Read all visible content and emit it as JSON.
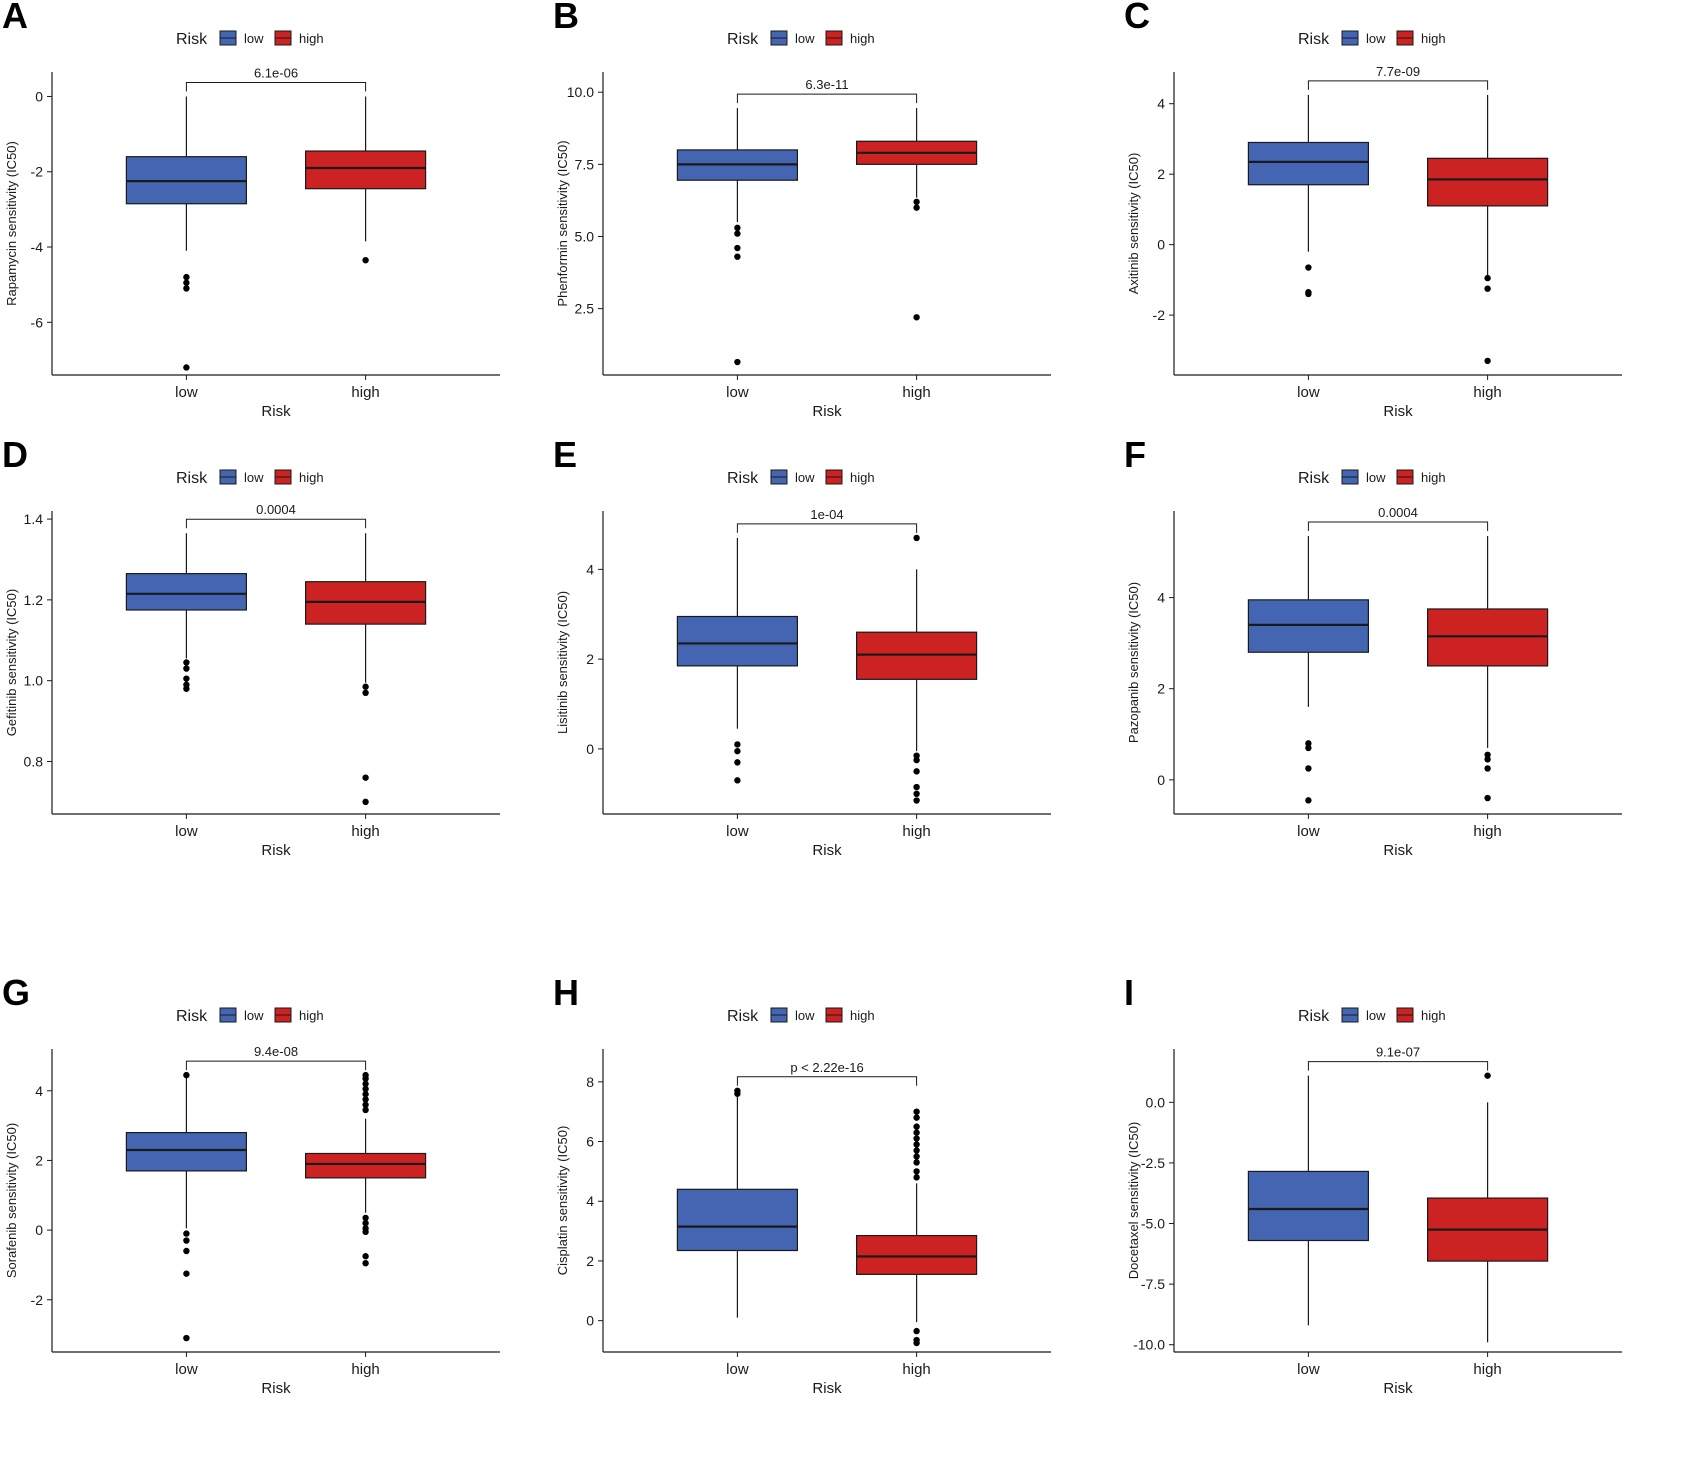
{
  "legend": {
    "title": "Risk",
    "low_label": "low",
    "high_label": "high"
  },
  "colors": {
    "low": "#4466b2",
    "high": "#cc2222",
    "stroke": "#1a1a1a"
  },
  "chart_data": [
    {
      "type": "box",
      "panel": "A",
      "title": "",
      "xlabel": "Risk",
      "ylabel": "Rapamycin sensitivity (IC50)",
      "categories": [
        "low",
        "high"
      ],
      "ylim": [
        -7.4,
        0.65
      ],
      "yticks": [
        0,
        -2,
        -4,
        -6
      ],
      "ytick_labels": [
        "0",
        "-2",
        "-4",
        "-6"
      ],
      "p_value": "6.1e-06",
      "boxes": [
        {
          "name": "low",
          "q1": -2.85,
          "median": -2.25,
          "q3": -1.6,
          "whisker_low": -4.1,
          "whisker_high": 0.0,
          "outliers": [
            -4.8,
            -4.95,
            -5.1,
            -7.2
          ]
        },
        {
          "name": "high",
          "q1": -2.45,
          "median": -1.9,
          "q3": -1.45,
          "whisker_low": -3.85,
          "whisker_high": 0.0,
          "outliers": [
            -4.35
          ]
        }
      ]
    },
    {
      "type": "box",
      "panel": "B",
      "title": "",
      "xlabel": "Risk",
      "ylabel": "Phenformin sensitivity (IC50)",
      "categories": [
        "low",
        "high"
      ],
      "ylim": [
        0.2,
        10.7
      ],
      "yticks": [
        10.0,
        7.5,
        5.0,
        2.5
      ],
      "ytick_labels": [
        "10.0",
        "7.5",
        "5.0",
        "2.5"
      ],
      "p_value": "6.3e-11",
      "boxes": [
        {
          "name": "low",
          "q1": 6.95,
          "median": 7.5,
          "q3": 8.0,
          "whisker_low": 5.5,
          "whisker_high": 9.45,
          "outliers": [
            5.3,
            5.1,
            4.6,
            4.3,
            0.65
          ]
        },
        {
          "name": "high",
          "q1": 7.5,
          "median": 7.9,
          "q3": 8.3,
          "whisker_low": 6.35,
          "whisker_high": 9.45,
          "outliers": [
            6.2,
            6.0,
            2.2
          ]
        }
      ]
    },
    {
      "type": "box",
      "panel": "C",
      "title": "",
      "xlabel": "Risk",
      "ylabel": "Axitinib sensitivity (IC50)",
      "categories": [
        "low",
        "high"
      ],
      "ylim": [
        -3.7,
        4.9
      ],
      "yticks": [
        4,
        2,
        0,
        -2
      ],
      "ytick_labels": [
        "4",
        "2",
        "0",
        "-2"
      ],
      "p_value": "7.7e-09",
      "boxes": [
        {
          "name": "low",
          "q1": 1.7,
          "median": 2.35,
          "q3": 2.9,
          "whisker_low": -0.2,
          "whisker_high": 4.25,
          "outliers": [
            -0.65,
            -1.35,
            -1.4
          ]
        },
        {
          "name": "high",
          "q1": 1.1,
          "median": 1.85,
          "q3": 2.45,
          "whisker_low": -0.9,
          "whisker_high": 4.25,
          "outliers": [
            -0.95,
            -1.25,
            -3.3
          ]
        }
      ]
    },
    {
      "type": "box",
      "panel": "D",
      "title": "",
      "xlabel": "Risk",
      "ylabel": "Gefitinib sensitivity (IC50)",
      "categories": [
        "low",
        "high"
      ],
      "ylim": [
        0.67,
        1.42
      ],
      "yticks": [
        1.4,
        1.2,
        1.0,
        0.8
      ],
      "ytick_labels": [
        "1.4",
        "1.2",
        "1.0",
        "0.8"
      ],
      "p_value": "0.0004",
      "boxes": [
        {
          "name": "low",
          "q1": 1.175,
          "median": 1.215,
          "q3": 1.265,
          "whisker_low": 1.055,
          "whisker_high": 1.365,
          "outliers": [
            1.045,
            1.03,
            1.005,
            0.99,
            0.98
          ]
        },
        {
          "name": "high",
          "q1": 1.14,
          "median": 1.195,
          "q3": 1.245,
          "whisker_low": 0.995,
          "whisker_high": 1.365,
          "outliers": [
            0.985,
            0.97,
            0.76,
            0.7
          ]
        }
      ]
    },
    {
      "type": "box",
      "panel": "E",
      "title": "",
      "xlabel": "Risk",
      "ylabel": "Lisitinib sensitivity (IC50)",
      "categories": [
        "low",
        "high"
      ],
      "ylim": [
        -1.45,
        5.3
      ],
      "yticks": [
        4,
        2,
        0
      ],
      "ytick_labels": [
        "4",
        "2",
        "0"
      ],
      "p_value": "1e-04",
      "boxes": [
        {
          "name": "low",
          "q1": 1.85,
          "median": 2.35,
          "q3": 2.95,
          "whisker_low": 0.45,
          "whisker_high": 4.7,
          "outliers": [
            0.1,
            -0.05,
            -0.3,
            -0.7
          ]
        },
        {
          "name": "high",
          "q1": 1.55,
          "median": 2.1,
          "q3": 2.6,
          "whisker_low": -0.05,
          "whisker_high": 4.0,
          "outliers": [
            4.7,
            -0.15,
            -0.25,
            -0.5,
            -0.85,
            -1.0,
            -1.15
          ]
        }
      ]
    },
    {
      "type": "box",
      "panel": "F",
      "title": "",
      "xlabel": "Risk",
      "ylabel": "Pazopanib sensitivity (IC50)",
      "categories": [
        "low",
        "high"
      ],
      "ylim": [
        -0.75,
        5.9
      ],
      "yticks": [
        4,
        2,
        0
      ],
      "ytick_labels": [
        "4",
        "2",
        "0"
      ],
      "p_value": "0.0004",
      "boxes": [
        {
          "name": "low",
          "q1": 2.8,
          "median": 3.4,
          "q3": 3.95,
          "whisker_low": 1.6,
          "whisker_high": 5.35,
          "outliers": [
            0.8,
            0.7,
            0.25,
            -0.45
          ]
        },
        {
          "name": "high",
          "q1": 2.5,
          "median": 3.15,
          "q3": 3.75,
          "whisker_low": 0.7,
          "whisker_high": 5.35,
          "outliers": [
            0.55,
            0.45,
            0.25,
            -0.4
          ]
        }
      ]
    },
    {
      "type": "box",
      "panel": "G",
      "title": "",
      "xlabel": "Risk",
      "ylabel": "Sorafenib sensitivity (IC50)",
      "categories": [
        "low",
        "high"
      ],
      "ylim": [
        -3.5,
        5.2
      ],
      "yticks": [
        4,
        2,
        0,
        -2
      ],
      "ytick_labels": [
        "4",
        "2",
        "0",
        "-2"
      ],
      "p_value": "9.4e-08",
      "boxes": [
        {
          "name": "low",
          "q1": 1.7,
          "median": 2.3,
          "q3": 2.8,
          "whisker_low": 0.05,
          "whisker_high": 4.4,
          "outliers": [
            4.45,
            -0.1,
            -0.3,
            -0.6,
            -1.25,
            -3.1
          ]
        },
        {
          "name": "high",
          "q1": 1.5,
          "median": 1.9,
          "q3": 2.2,
          "whisker_low": 0.5,
          "whisker_high": 3.2,
          "outliers": [
            4.45,
            4.35,
            4.2,
            4.05,
            3.9,
            3.75,
            3.6,
            3.45,
            0.35,
            0.2,
            0.05,
            -0.05,
            -0.75,
            -0.95
          ]
        }
      ]
    },
    {
      "type": "box",
      "panel": "H",
      "title": "",
      "xlabel": "Risk",
      "ylabel": "Cisplatin sensitivity (IC50)",
      "categories": [
        "low",
        "high"
      ],
      "ylim": [
        -1.05,
        9.1
      ],
      "yticks": [
        8,
        6,
        4,
        2,
        0
      ],
      "ytick_labels": [
        "8",
        "6",
        "4",
        "2",
        "0"
      ],
      "p_value": "p < 2.22e-16",
      "boxes": [
        {
          "name": "low",
          "q1": 2.35,
          "median": 3.15,
          "q3": 4.4,
          "whisker_low": 0.1,
          "whisker_high": 7.6,
          "outliers": [
            7.7,
            7.6
          ]
        },
        {
          "name": "high",
          "q1": 1.55,
          "median": 2.15,
          "q3": 2.85,
          "whisker_low": -0.05,
          "whisker_high": 4.6,
          "outliers": [
            7.0,
            6.8,
            6.5,
            6.3,
            6.1,
            5.9,
            5.7,
            5.5,
            5.3,
            5.0,
            4.8,
            -0.35,
            -0.65,
            -0.75
          ]
        }
      ]
    },
    {
      "type": "box",
      "panel": "I",
      "title": "",
      "xlabel": "Risk",
      "ylabel": "Docetaxel sensitivity (IC50)",
      "categories": [
        "low",
        "high"
      ],
      "ylim": [
        -10.3,
        2.2
      ],
      "yticks": [
        0.0,
        -2.5,
        -5.0,
        -7.5,
        -10.0
      ],
      "ytick_labels": [
        "0.0",
        "-2.5",
        "-5.0",
        "-7.5",
        "-10.0"
      ],
      "p_value": "9.1e-07",
      "boxes": [
        {
          "name": "low",
          "q1": -5.7,
          "median": -4.4,
          "q3": -2.85,
          "whisker_low": -9.2,
          "whisker_high": 1.1,
          "outliers": []
        },
        {
          "name": "high",
          "q1": -6.55,
          "median": -5.25,
          "q3": -3.95,
          "whisker_low": -9.9,
          "whisker_high": 0.0,
          "outliers": [
            1.1
          ]
        }
      ]
    }
  ]
}
